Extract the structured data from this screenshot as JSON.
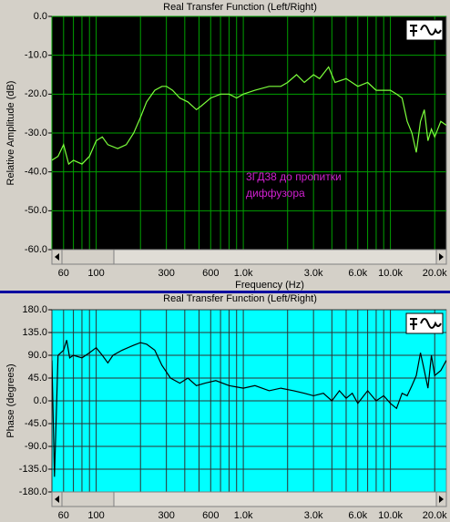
{
  "chart_data": [
    {
      "type": "line",
      "title": "Real Transfer Function (Left/Right)",
      "xlabel": "Frequency (Hz)",
      "ylabel": "Relative Amplitude (dB)",
      "annotation": [
        "3ГД38 до пропитки",
        "диффузора"
      ],
      "background": "#000000",
      "grid_color": "#00a000",
      "color": "#7cff3c",
      "annotation_color": "#d020d0",
      "xscale": "log",
      "xlim": [
        50,
        24000
      ],
      "xticks": [
        60,
        100,
        300,
        600,
        {
          "value": 1000,
          "label": "1.0k"
        },
        {
          "value": 3000,
          "label": "3.0k"
        },
        {
          "value": 6000,
          "label": "6.0k"
        },
        {
          "value": 10000,
          "label": "10.0k"
        },
        {
          "value": 20000,
          "label": "20.0k"
        }
      ],
      "minor_xgrid": [
        50,
        70,
        80,
        90,
        200,
        400,
        500,
        700,
        800,
        900,
        2000,
        4000,
        5000,
        7000,
        8000,
        9000
      ],
      "ylim": [
        -60,
        0
      ],
      "yticks": [
        {
          "value": 0,
          "label": "0.0"
        },
        {
          "value": -10,
          "label": "-10.0"
        },
        {
          "value": -20,
          "label": "-20.0"
        },
        {
          "value": -30,
          "label": "-30.0"
        },
        {
          "value": -40,
          "label": "-40.0"
        },
        {
          "value": -50,
          "label": "-50.0"
        },
        {
          "value": -60,
          "label": "-60.0"
        }
      ],
      "x": [
        50,
        55,
        60,
        65,
        70,
        80,
        90,
        100,
        110,
        120,
        140,
        160,
        180,
        200,
        220,
        250,
        280,
        300,
        330,
        370,
        420,
        480,
        520,
        600,
        700,
        800,
        900,
        1000,
        1200,
        1500,
        1800,
        2000,
        2300,
        2600,
        3000,
        3300,
        3800,
        4200,
        5000,
        6000,
        7000,
        8000,
        9000,
        10000,
        11000,
        12000,
        13000,
        14000,
        15000,
        16000,
        17000,
        18000,
        19000,
        20000,
        22000,
        24000
      ],
      "values": [
        -37,
        -36,
        -33,
        -38,
        -37,
        -38,
        -36,
        -32,
        -31,
        -33,
        -34,
        -33,
        -30,
        -26,
        -22,
        -19,
        -18,
        -18,
        -19,
        -21,
        -22,
        -24,
        -23,
        -21,
        -20,
        -20,
        -21,
        -20,
        -19,
        -18,
        -18,
        -17,
        -15,
        -17,
        -15,
        -16,
        -13,
        -17,
        -16,
        -18,
        -17,
        -19,
        -19,
        -19,
        -20,
        -21,
        -27,
        -30,
        -35,
        -27,
        -24,
        -32,
        -29,
        -31,
        -27,
        -28
      ]
    },
    {
      "type": "line",
      "title": "Real Transfer Function (Left/Right)",
      "ylabel": "Phase (degrees)",
      "background": "#00ffff",
      "grid_color": "#303030",
      "color": "#000000",
      "xscale": "log",
      "xlim": [
        50,
        24000
      ],
      "xticks": [
        60,
        100,
        300,
        600,
        {
          "value": 1000,
          "label": "1.0k"
        },
        {
          "value": 3000,
          "label": "3.0k"
        },
        {
          "value": 6000,
          "label": "6.0k"
        },
        {
          "value": 10000,
          "label": "10.0k"
        },
        {
          "value": 20000,
          "label": "20.0k"
        }
      ],
      "minor_xgrid": [
        50,
        70,
        80,
        90,
        200,
        400,
        500,
        700,
        800,
        900,
        2000,
        4000,
        5000,
        7000,
        8000,
        9000
      ],
      "ylim": [
        -180,
        180
      ],
      "yticks": [
        {
          "value": 180,
          "label": "180.0"
        },
        {
          "value": 135,
          "label": "135.0"
        },
        {
          "value": 90,
          "label": "90.0"
        },
        {
          "value": 45,
          "label": "45.0"
        },
        {
          "value": 0,
          "label": "0.0"
        },
        {
          "value": -45,
          "label": "-45.0"
        },
        {
          "value": -90,
          "label": "-90.0"
        },
        {
          "value": -135,
          "label": "-135.0"
        },
        {
          "value": -180,
          "label": "-180.0"
        }
      ],
      "x": [
        50,
        52,
        55,
        60,
        63,
        66,
        70,
        80,
        90,
        100,
        110,
        120,
        130,
        150,
        180,
        200,
        220,
        250,
        280,
        320,
        370,
        420,
        480,
        550,
        650,
        800,
        1000,
        1200,
        1500,
        1800,
        2200,
        2600,
        3000,
        3500,
        4000,
        4500,
        5000,
        5500,
        6000,
        7000,
        8000,
        9000,
        10000,
        11000,
        12000,
        13000,
        14000,
        15000,
        16000,
        17000,
        18000,
        19000,
        20000,
        22000,
        24000
      ],
      "values": [
        80,
        -150,
        90,
        100,
        120,
        85,
        90,
        85,
        95,
        105,
        90,
        75,
        90,
        100,
        110,
        115,
        112,
        100,
        70,
        45,
        35,
        45,
        30,
        35,
        40,
        30,
        25,
        30,
        20,
        25,
        20,
        15,
        10,
        15,
        0,
        20,
        5,
        15,
        -5,
        20,
        0,
        10,
        -5,
        -15,
        15,
        10,
        30,
        50,
        95,
        60,
        25,
        90,
        50,
        60,
        80
      ]
    }
  ]
}
